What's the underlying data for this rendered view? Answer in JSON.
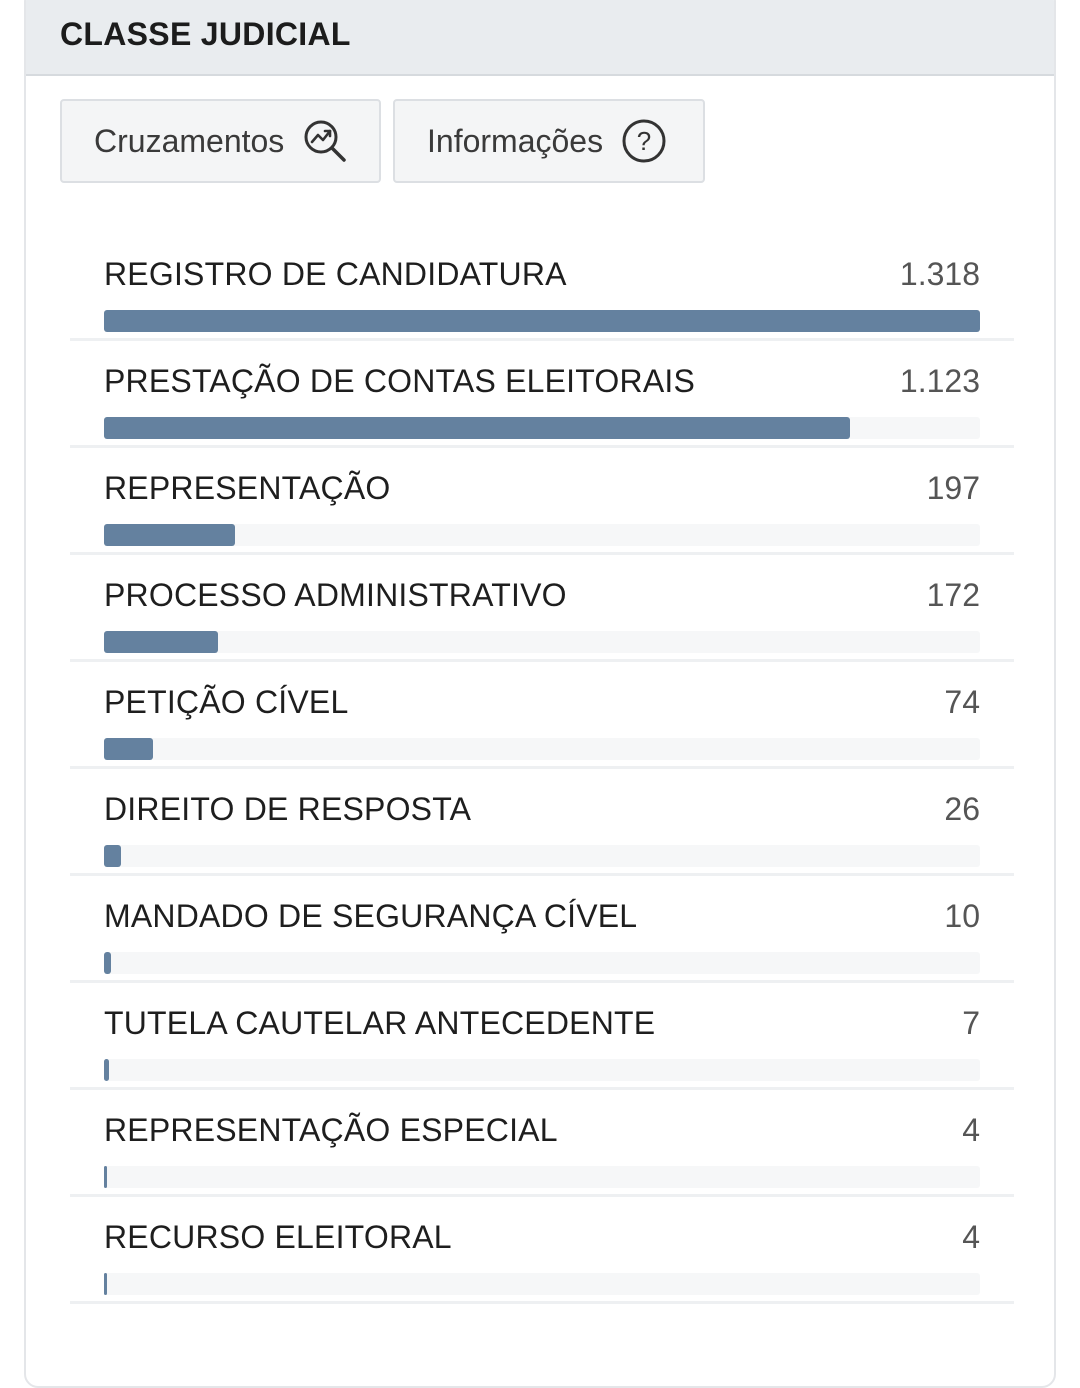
{
  "header": {
    "title": "CLASSE JUDICIAL"
  },
  "toolbar": {
    "cruzamentos_label": "Cruzamentos",
    "informacoes_label": "Informações"
  },
  "colors": {
    "bar": "#64819f",
    "track": "#f6f7f8",
    "header_bg": "#e9ecef"
  },
  "chart_data": {
    "type": "bar",
    "categories": [
      "REGISTRO DE CANDIDATURA",
      "PRESTAÇÃO DE CONTAS ELEITORAIS",
      "REPRESENTAÇÃO",
      "PROCESSO ADMINISTRATIVO",
      "PETIÇÃO CÍVEL",
      "DIREITO DE RESPOSTA",
      "MANDADO DE SEGURANÇA CÍVEL",
      "TUTELA CAUTELAR ANTECEDENTE",
      "REPRESENTAÇÃO ESPECIAL",
      "RECURSO ELEITORAL"
    ],
    "values": [
      1318,
      1123,
      197,
      172,
      74,
      26,
      10,
      7,
      4,
      4
    ],
    "value_labels": [
      "1.318",
      "1.123",
      "197",
      "172",
      "74",
      "26",
      "10",
      "7",
      "4",
      "4"
    ]
  }
}
